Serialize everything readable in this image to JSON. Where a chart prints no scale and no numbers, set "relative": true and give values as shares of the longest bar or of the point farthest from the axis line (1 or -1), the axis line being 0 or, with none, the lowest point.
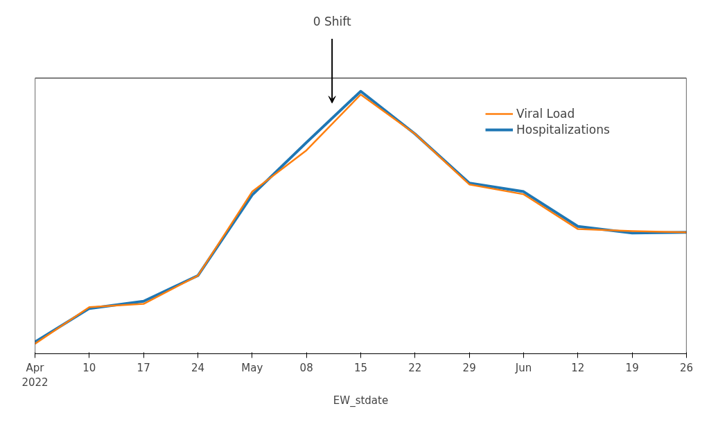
{
  "chart_data": {
    "type": "line",
    "xlabel": "EW_stdate",
    "relative": true,
    "x": [
      "2022-04-03",
      "2022-04-10",
      "2022-04-17",
      "2022-04-24",
      "2022-05-01",
      "2022-05-08",
      "2022-05-15",
      "2022-05-22",
      "2022-05-29",
      "2022-06-05",
      "2022-06-12",
      "2022-06-19",
      "2022-06-26"
    ],
    "xlim": [
      "2022-04-03",
      "2022-06-26"
    ],
    "xticks": [
      {
        "value": "2022-04-03",
        "label": "Apr\n2022"
      },
      {
        "value": "2022-04-10",
        "label": "10"
      },
      {
        "value": "2022-04-17",
        "label": "17"
      },
      {
        "value": "2022-04-24",
        "label": "24"
      },
      {
        "value": "2022-05-01",
        "label": "May"
      },
      {
        "value": "2022-05-08",
        "label": "08"
      },
      {
        "value": "2022-05-15",
        "label": "15"
      },
      {
        "value": "2022-05-22",
        "label": "22"
      },
      {
        "value": "2022-05-29",
        "label": "29"
      },
      {
        "value": "2022-06-05",
        "label": "Jun"
      },
      {
        "value": "2022-06-12",
        "label": "12"
      },
      {
        "value": "2022-06-19",
        "label": "19"
      },
      {
        "value": "2022-06-26",
        "label": "26"
      }
    ],
    "series": [
      {
        "name": "Viral Load",
        "color": "#ff7f0e",
        "values": [
          0.0375,
          0.1775,
          0.19,
          0.2975,
          0.6175,
          0.775,
          0.9875,
          0.8375,
          0.645,
          0.6075,
          0.475,
          0.4675,
          0.4625
        ]
      },
      {
        "name": "Hospitalizations",
        "color": "#1f77b4",
        "values": [
          0.045,
          0.1725,
          0.2,
          0.2975,
          0.605,
          0.805,
          1,
          0.8375,
          0.65,
          0.6175,
          0.485,
          0.46,
          0.4625
        ]
      }
    ],
    "annotations": [
      "0 Shift"
    ],
    "legend": "top right",
    "grid": false,
    "tick_labels": "x"
  }
}
